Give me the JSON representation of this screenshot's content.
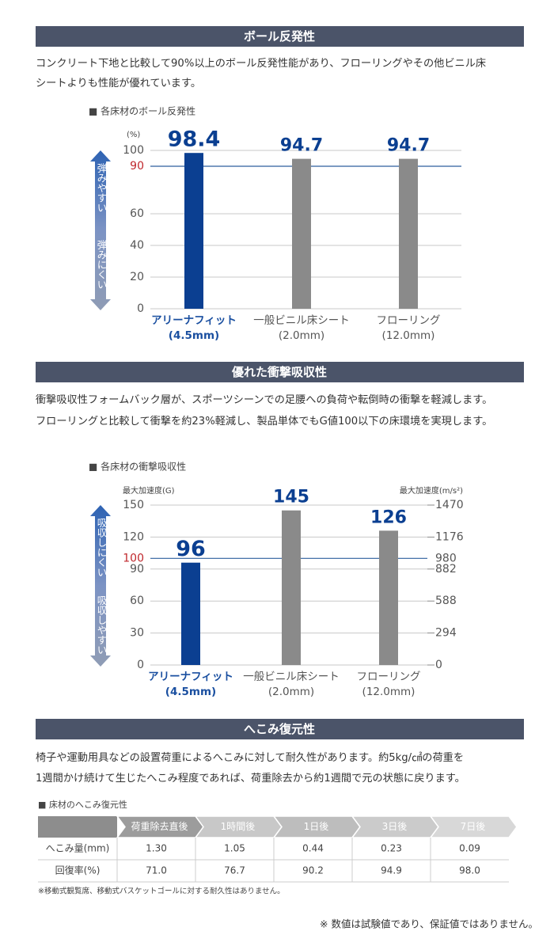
{
  "sections": [
    {
      "title": "ボール反発性",
      "paragraph": [
        "コンクリート下地と比較して90%以上のボール反発性能があり、フローリングやその他ビニル床",
        "シートよりも性能が優れています。"
      ]
    },
    {
      "title": "優れた衝撃吸収性",
      "paragraph": [
        "衝撃吸収性フォームバック層が、スポーツシーンでの足腰への負荷や転倒時の衝撃を軽減します。",
        "フローリングと比較して衝撃を約23%軽減し、製品単体でもG値100以下の床環境を実現します。"
      ]
    },
    {
      "title": "へこみ復元性",
      "paragraph": [
        "椅子や運動用具などの設置荷重によるへこみに対して耐久性があります。約5kg/㎠の荷重を",
        "1週間かけ続けて生じたへこみ程度であれば、荷重除去から約1週間で元の状態に戻ります。"
      ]
    }
  ],
  "chart_data": [
    {
      "type": "bar",
      "title": "■ 各床材のボール反発性",
      "y_label": "(%)",
      "categories": [
        "アリーナフィット",
        "一般ビニル床シート",
        "フローリング"
      ],
      "category_notes": [
        "(4.5mm)",
        "(2.0mm)",
        "(12.0mm)"
      ],
      "values": [
        98.4,
        94.7,
        94.7
      ],
      "colors": [
        "#0b3f91",
        "#8a8a8a",
        "#8a8a8a"
      ],
      "ylim": [
        0,
        100
      ],
      "yticks": [
        0,
        20,
        40,
        60,
        100
      ],
      "reference_line": 90,
      "arrow_labels": [
        "弾みやすい",
        "弾みにくい"
      ]
    },
    {
      "type": "bar",
      "title": "■ 各床材の衝撃吸収性",
      "y_label": "最大加速度(G)",
      "y2_label": "最大加速度(m/s²)",
      "categories": [
        "アリーナフィット",
        "一般ビニル床シート",
        "フローリング"
      ],
      "category_notes": [
        "(4.5mm)",
        "(2.0mm)",
        "(12.0mm)"
      ],
      "values": [
        96,
        145,
        126
      ],
      "colors": [
        "#0b3f91",
        "#8a8a8a",
        "#8a8a8a"
      ],
      "ylim": [
        0,
        150
      ],
      "yticks": [
        0,
        30,
        60,
        90,
        120,
        150
      ],
      "y2lim": [
        0,
        1470
      ],
      "y2ticks": [
        0,
        294,
        588,
        882,
        1176,
        1470
      ],
      "reference_line": 100,
      "reference_line_y2": 980,
      "arrow_labels": [
        "吸収しにくい",
        "吸収しやすい"
      ]
    }
  ],
  "table": {
    "title": "■ 床材のへこみ復元性",
    "columns": [
      "荷重除去直後",
      "1時間後",
      "1日後",
      "3日後",
      "7日後"
    ],
    "rows": [
      {
        "label": "へこみ量(mm)",
        "cells": [
          "1.30",
          "1.05",
          "0.44",
          "0.23",
          "0.09"
        ]
      },
      {
        "label": "回復率(%)",
        "cells": [
          "71.0",
          "76.7",
          "90.2",
          "94.9",
          "98.0"
        ]
      }
    ],
    "footnote": "※移動式観覧席、移動式バスケットゴールに対する耐久性はありません。"
  },
  "note": "※ 数値は試験値であり、保証値ではありません。"
}
